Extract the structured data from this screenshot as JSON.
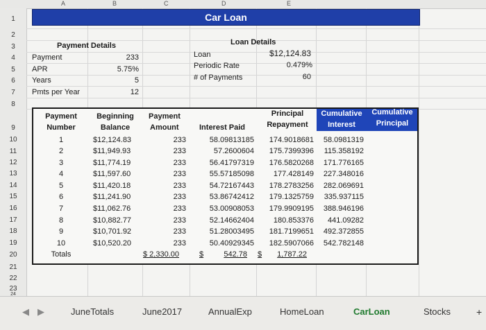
{
  "columns": [
    "A",
    "B",
    "C",
    "D",
    "E"
  ],
  "rows": [
    "1",
    "2",
    "3",
    "4",
    "5",
    "6",
    "7",
    "8",
    "9",
    "10",
    "11",
    "12",
    "13",
    "14",
    "15",
    "16",
    "17",
    "18",
    "19",
    "20",
    "21",
    "22",
    "23",
    "24"
  ],
  "title": "Car Loan",
  "payment_details": {
    "header": "Payment Details",
    "rows": [
      {
        "label": "Payment",
        "value": "233"
      },
      {
        "label": "APR",
        "value": "5.75%"
      },
      {
        "label": "Years",
        "value": "5"
      },
      {
        "label": "Pmts per Year",
        "value": "12"
      }
    ]
  },
  "loan_details": {
    "header": "Loan Details",
    "rows": [
      {
        "label": "Loan",
        "value": "$12,124.83"
      },
      {
        "label": "Periodic Rate",
        "value": "0.479%"
      },
      {
        "label": "# of Payments",
        "value": "60"
      }
    ]
  },
  "table": {
    "headers": {
      "payment_number": [
        "Payment",
        "Number"
      ],
      "beginning_balance": [
        "Beginning",
        "Balance"
      ],
      "payment_amount": [
        "Payment",
        "Amount"
      ],
      "interest_paid": "Interest Paid",
      "principal_repayment": [
        "Principal",
        "Repayment"
      ],
      "cumulative_interest": [
        "Cumulative",
        "Interest"
      ],
      "cumulative_principal": [
        "Cumulative",
        "Principal"
      ]
    },
    "rows": [
      {
        "n": "1",
        "bal": "$12,124.83",
        "pay": "233",
        "int": "58.09813185",
        "prin": "174.9018681",
        "ci": "58.0981319"
      },
      {
        "n": "2",
        "bal": "$11,949.93",
        "pay": "233",
        "int": "57.2600604",
        "prin": "175.7399396",
        "ci": "115.358192"
      },
      {
        "n": "3",
        "bal": "$11,774.19",
        "pay": "233",
        "int": "56.41797319",
        "prin": "176.5820268",
        "ci": "171.776165"
      },
      {
        "n": "4",
        "bal": "$11,597.60",
        "pay": "233",
        "int": "55.57185098",
        "prin": "177.428149",
        "ci": "227.348016"
      },
      {
        "n": "5",
        "bal": "$11,420.18",
        "pay": "233",
        "int": "54.72167443",
        "prin": "178.2783256",
        "ci": "282.069691"
      },
      {
        "n": "6",
        "bal": "$11,241.90",
        "pay": "233",
        "int": "53.86742412",
        "prin": "179.1325759",
        "ci": "335.937115"
      },
      {
        "n": "7",
        "bal": "$11,062.76",
        "pay": "233",
        "int": "53.00908053",
        "prin": "179.9909195",
        "ci": "388.946196"
      },
      {
        "n": "8",
        "bal": "$10,882.77",
        "pay": "233",
        "int": "52.14662404",
        "prin": "180.853376",
        "ci": "441.09282"
      },
      {
        "n": "9",
        "bal": "$10,701.92",
        "pay": "233",
        "int": "51.28003495",
        "prin": "181.7199651",
        "ci": "492.372855"
      },
      {
        "n": "10",
        "bal": "$10,520.20",
        "pay": "233",
        "int": "50.40929345",
        "prin": "182.5907066",
        "ci": "542.782148"
      }
    ],
    "totals": {
      "label": "Totals",
      "payment": "$ 2,330.00",
      "int_symbol": "$",
      "int": "542.78",
      "prin_symbol": "$",
      "prin": "1,787.22"
    }
  },
  "sheet_tabs": [
    "JuneTotals",
    "June2017",
    "AnnualExp",
    "HomeLoan",
    "CarLoan",
    "Stocks"
  ],
  "active_tab": "CarLoan",
  "add_sheet": "+"
}
